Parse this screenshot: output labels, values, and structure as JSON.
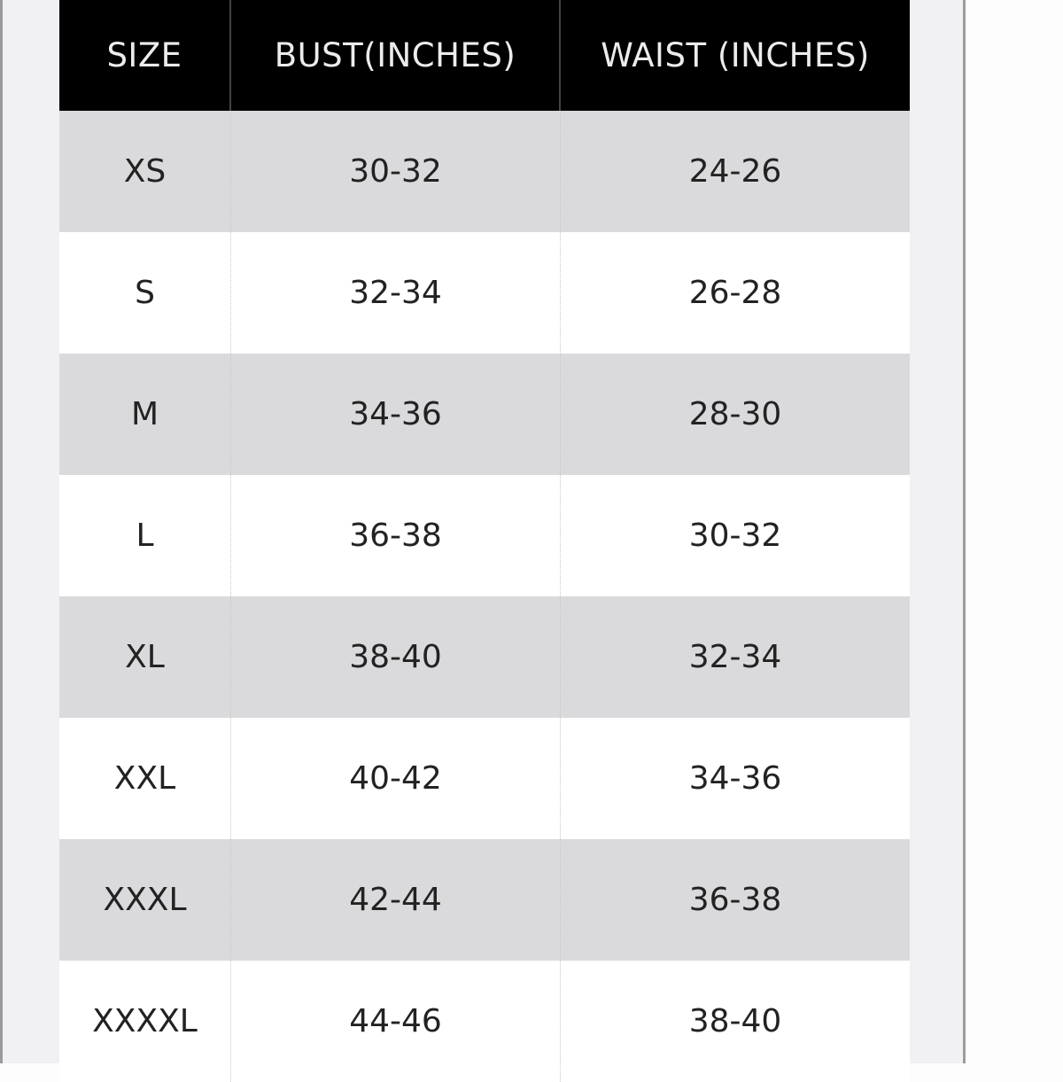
{
  "colors": {
    "header_bg": "#000000",
    "header_text": "#ececec",
    "stripe": "#dadadc",
    "row": "#ffffff"
  },
  "table": {
    "headers": [
      "SIZE",
      "BUST(INCHES)",
      "WAIST (INCHES)"
    ],
    "rows": [
      [
        "XS",
        "30-32",
        "24-26"
      ],
      [
        "S",
        "32-34",
        "26-28"
      ],
      [
        "M",
        "34-36",
        "28-30"
      ],
      [
        "L",
        "36-38",
        "30-32"
      ],
      [
        "XL",
        "38-40",
        "32-34"
      ],
      [
        "XXL",
        "40-42",
        "34-36"
      ],
      [
        "XXXL",
        "42-44",
        "36-38"
      ],
      [
        "XXXXL",
        "44-46",
        "38-40"
      ]
    ]
  }
}
